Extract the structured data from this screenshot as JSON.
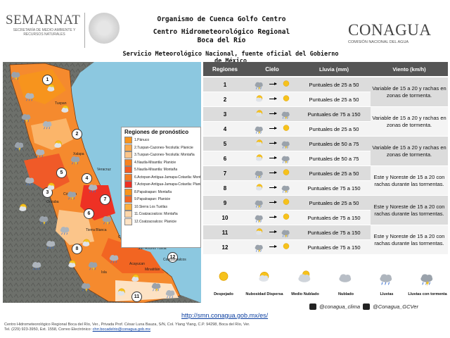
{
  "header": {
    "semarnat_name": "SEMARNAT",
    "semarnat_sub": "SECRETARÍA DE MEDIO AMBIENTE Y RECURSOS NATURALES",
    "title_line1": "Organismo de Cuenca Golfo Centro",
    "title_line2": "Centro Hidrometeorológico Regional",
    "title_line3": "Boca del Río",
    "subtitle": "Servicio Meteorológico Nacional, fuente oficial del Gobierno de México",
    "conagua_name": "CONAGUA",
    "conagua_sub": "COMISIÓN NACIONAL DEL AGUA"
  },
  "legend": {
    "title": "Regiones de pronóstico",
    "items": [
      {
        "label": "1.Pánuco",
        "color": "#f7941d"
      },
      {
        "label": "2.Tuxpan-Cazones-Tecolutla: Planicie",
        "color": "#f9a94b"
      },
      {
        "label": "3.Tuxpan-Cazones-Tecolutla: Montaña",
        "color": "#fbc58a"
      },
      {
        "label": "4.Nautla-Misantla: Planicie",
        "color": "#f58220"
      },
      {
        "label": "5.Nautla-Misantla: Montaña",
        "color": "#f15a22"
      },
      {
        "label": "6.Actopan-Antigua-Jamapa-Cotaxtla: Montaña",
        "color": "#f47b20"
      },
      {
        "label": "7.Actopan-Antigua-Jamapa-Cotaxtla: Planicie",
        "color": "#ee3124"
      },
      {
        "label": "8.Papaloapan: Montaña",
        "color": "#f7941d"
      },
      {
        "label": "9.Papaloapan: Planicie",
        "color": "#f26522"
      },
      {
        "label": "10.Sierra Los Tuxtlas",
        "color": "#fbb040"
      },
      {
        "label": "11.Coatzacoalcos: Montaña",
        "color": "#fcd5a8"
      },
      {
        "label": "12.Coatzacoalcos: Planicie",
        "color": "#fde2c4"
      }
    ]
  },
  "map_labels": [
    "1",
    "2",
    "3",
    "4",
    "5",
    "6",
    "7",
    "8",
    "9",
    "10",
    "11",
    "12"
  ],
  "map_cities": [
    "Tuxpan",
    "Xalapa",
    "Veracruz",
    "Córdoba",
    "Orizaba",
    "Tierra Blanca",
    "San Andrés Tuxtla",
    "Acayucan",
    "Coatzacoalcos",
    "Minatitlán",
    "Isla",
    "Cosamaloapan"
  ],
  "table": {
    "headers": {
      "region": "Regiones",
      "sky": "Cielo",
      "rain": "Lluvia (mm)",
      "wind": "Viento (km/h)"
    },
    "rows": [
      {
        "region": "1",
        "rain": "Puntuales de 25 a 50",
        "from": "storm",
        "to": "sun"
      },
      {
        "region": "2",
        "rain": "Puntuales de 25 a 50",
        "from": "sunny-cloud",
        "to": "sun"
      },
      {
        "region": "3",
        "rain": "Puntuales de 75 a 150",
        "from": "sunny-cloud",
        "to": "storm"
      },
      {
        "region": "4",
        "rain": "Puntuales de 25 a 50",
        "from": "storm",
        "to": "sun"
      },
      {
        "region": "5",
        "rain": "Puntuales de 50 a 75",
        "from": "sunny-cloud",
        "to": "storm"
      },
      {
        "region": "6",
        "rain": "Puntuales de 50 a 75",
        "from": "sunny-cloud",
        "to": "storm"
      },
      {
        "region": "7",
        "rain": "Puntuales de 25 a 50",
        "from": "storm",
        "to": "sun"
      },
      {
        "region": "8",
        "rain": "Puntuales de 75 a 150",
        "from": "sunny-cloud",
        "to": "storm"
      },
      {
        "region": "9",
        "rain": "Puntuales de 25 a 50",
        "from": "storm",
        "to": "sun"
      },
      {
        "region": "10",
        "rain": "Puntuales de 75 a 150",
        "from": "storm",
        "to": "sun"
      },
      {
        "region": "11",
        "rain": "Puntuales de 75 a 150",
        "from": "sunny-cloud",
        "to": "storm"
      },
      {
        "region": "12",
        "rain": "Puntuales de 75 a 150",
        "from": "storm",
        "to": "sun"
      }
    ],
    "wind_groups": [
      {
        "text": "Variable de 15 a 20 y rachas en zonas de tormenta."
      },
      {
        "text": "Variable de 15 a 20 y rachas en zonas de tormenta."
      },
      {
        "text": "Variable de 15 a 20 y rachas en zonas de tormenta."
      },
      {
        "text": "Este y Noreste de 15 a 20 con rachas durante las tormentas."
      },
      {
        "text": "Este y Noreste de 15 a 20 con rachas durante las tormentas."
      },
      {
        "text": "Este y Noreste de 15 a 20 con rachas durante las tormentas."
      }
    ]
  },
  "sky_key": [
    {
      "label": "Despejado",
      "icon": "sun"
    },
    {
      "label": "Nubosidad Dispersa",
      "icon": "sunny-cloud"
    },
    {
      "label": "Medio Nublado",
      "icon": "partly-cloudy"
    },
    {
      "label": "Nublado",
      "icon": "cloud"
    },
    {
      "label": "Lluvias",
      "icon": "rain"
    },
    {
      "label": "Lluvias con tormenta",
      "icon": "storm"
    }
  ],
  "links": {
    "url": "http://smn.conagua.gob.mx/es/",
    "twitter1": "@conagua_clima",
    "twitter2": "@Conagua_GCVer"
  },
  "footer": {
    "line1": "Centro Hidrometeorológico Regional Boca del Río, Ver., Privada Prof. César Luna Bauza, S/N, Col. Ylang Ylang, C.P. 94298, Boca del Río, Ver.",
    "line2_prefix": "Tel. (229) 923-3950, Ext. 1558, Correo Electrónico:",
    "email": "chrr.bocadelrio@conagua.gob.mx"
  }
}
